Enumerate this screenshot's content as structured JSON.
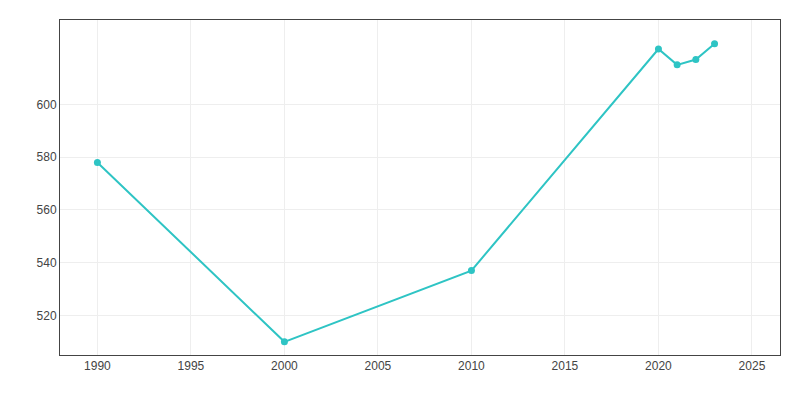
{
  "chart_data": {
    "type": "line",
    "x": [
      1990,
      2000,
      2010,
      2020,
      2021,
      2022,
      2023
    ],
    "values": [
      578,
      510,
      537,
      621,
      615,
      617,
      623
    ],
    "color": "#2EC4C4",
    "marker": "circle",
    "line_style": "solid",
    "xlim": [
      1988,
      2026.5
    ],
    "ylim": [
      505,
      632
    ],
    "xticks": [
      1990,
      1995,
      2000,
      2005,
      2010,
      2015,
      2020,
      2025
    ],
    "yticks": [
      520,
      540,
      560,
      580,
      600
    ],
    "grid": true
  }
}
